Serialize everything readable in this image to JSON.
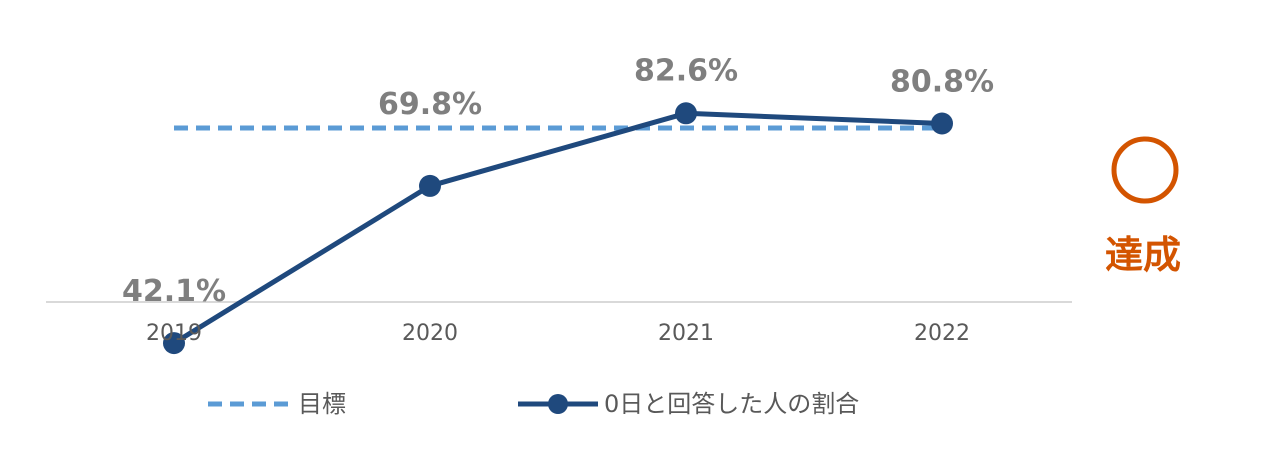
{
  "chart_data": {
    "type": "line",
    "categories": [
      "2019",
      "2020",
      "2021",
      "2022"
    ],
    "ylim": [
      40,
      86
    ],
    "series": [
      {
        "name": "目標",
        "values": [
          80,
          80,
          80,
          80
        ],
        "style": "dashed",
        "color": "#5b9bd5"
      },
      {
        "name": "0日と回答した人の割合",
        "values": [
          42.1,
          69.8,
          82.6,
          80.8
        ],
        "style": "solid-markers",
        "color": "#1f497d"
      }
    ],
    "data_labels": [
      "42.1%",
      "69.8%",
      "82.6%",
      "80.8%"
    ],
    "legend_position": "bottom",
    "grid": false
  },
  "annotation": {
    "symbol": "◯",
    "text": "達成",
    "color": "#d35400"
  }
}
